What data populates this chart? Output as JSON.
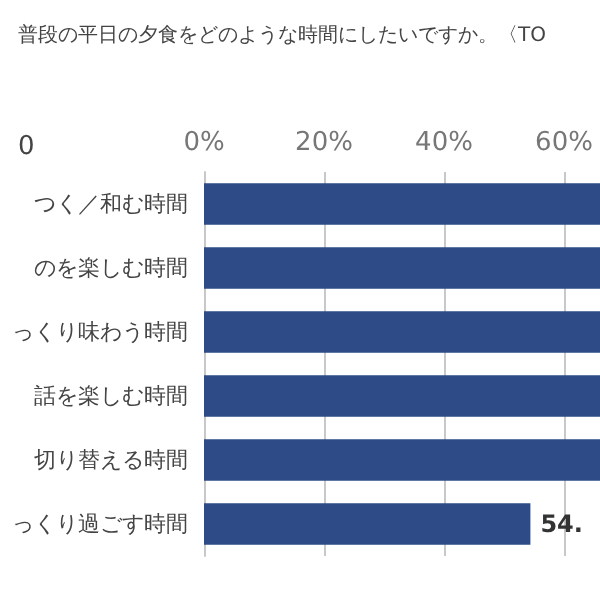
{
  "chart_data": {
    "type": "bar",
    "orientation": "horizontal",
    "title": "普段の平日の夕食をどのような時間にしたいですか。〈TO",
    "annotations": [
      "0"
    ],
    "categories": [
      "つく／和む時間",
      "のを楽しむ時間",
      "っくり味わう時間",
      "話を楽しむ時間",
      "切り替える時間",
      "っくり過ごす時間"
    ],
    "values": [
      66,
      66,
      66,
      66,
      66,
      54.4
    ],
    "value_labels": [
      null,
      null,
      null,
      null,
      null,
      "54."
    ],
    "color": "#2e4a87",
    "xlim": [
      0,
      66
    ],
    "xticks": [
      {
        "value": 0,
        "label": "0%"
      },
      {
        "value": 20,
        "label": "20%"
      },
      {
        "value": 40,
        "label": "40%"
      },
      {
        "value": 60,
        "label": "60%"
      }
    ],
    "grid": "x"
  }
}
